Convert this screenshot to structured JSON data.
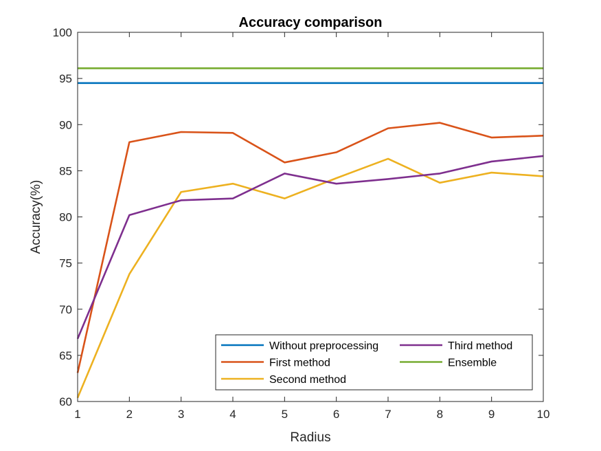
{
  "chart_data": {
    "type": "line",
    "title": "Accuracy comparison",
    "xlabel": "Radius",
    "ylabel": "Accuracy(%)",
    "xlim": [
      1,
      10
    ],
    "ylim": [
      60,
      100
    ],
    "xticks": [
      1,
      2,
      3,
      4,
      5,
      6,
      7,
      8,
      9,
      10
    ],
    "yticks": [
      60,
      65,
      70,
      75,
      80,
      85,
      90,
      95,
      100
    ],
    "grid": false,
    "legend_position": "bottom-right",
    "legend_columns": 2,
    "x": [
      1,
      2,
      3,
      4,
      5,
      6,
      7,
      8,
      9,
      10
    ],
    "series": [
      {
        "name": "Without preprocessing",
        "color": "#0072BD",
        "values": [
          94.5,
          94.5,
          94.5,
          94.5,
          94.5,
          94.5,
          94.5,
          94.5,
          94.5,
          94.5
        ]
      },
      {
        "name": "First method",
        "color": "#D95319",
        "values": [
          63.1,
          88.1,
          89.2,
          89.1,
          85.9,
          87.0,
          89.6,
          90.2,
          88.6,
          88.8
        ]
      },
      {
        "name": "Second method",
        "color": "#EDB120",
        "values": [
          60.4,
          73.8,
          82.7,
          83.6,
          82.0,
          84.2,
          86.3,
          83.7,
          84.8,
          84.4
        ]
      },
      {
        "name": "Third method",
        "color": "#7E2F8E",
        "values": [
          66.8,
          80.2,
          81.8,
          82.0,
          84.7,
          83.6,
          84.1,
          84.7,
          86.0,
          86.6
        ]
      },
      {
        "name": "Ensemble",
        "color": "#77AC30",
        "values": [
          96.1,
          96.1,
          96.1,
          96.1,
          96.1,
          96.1,
          96.1,
          96.1,
          96.1,
          96.1
        ]
      }
    ]
  }
}
